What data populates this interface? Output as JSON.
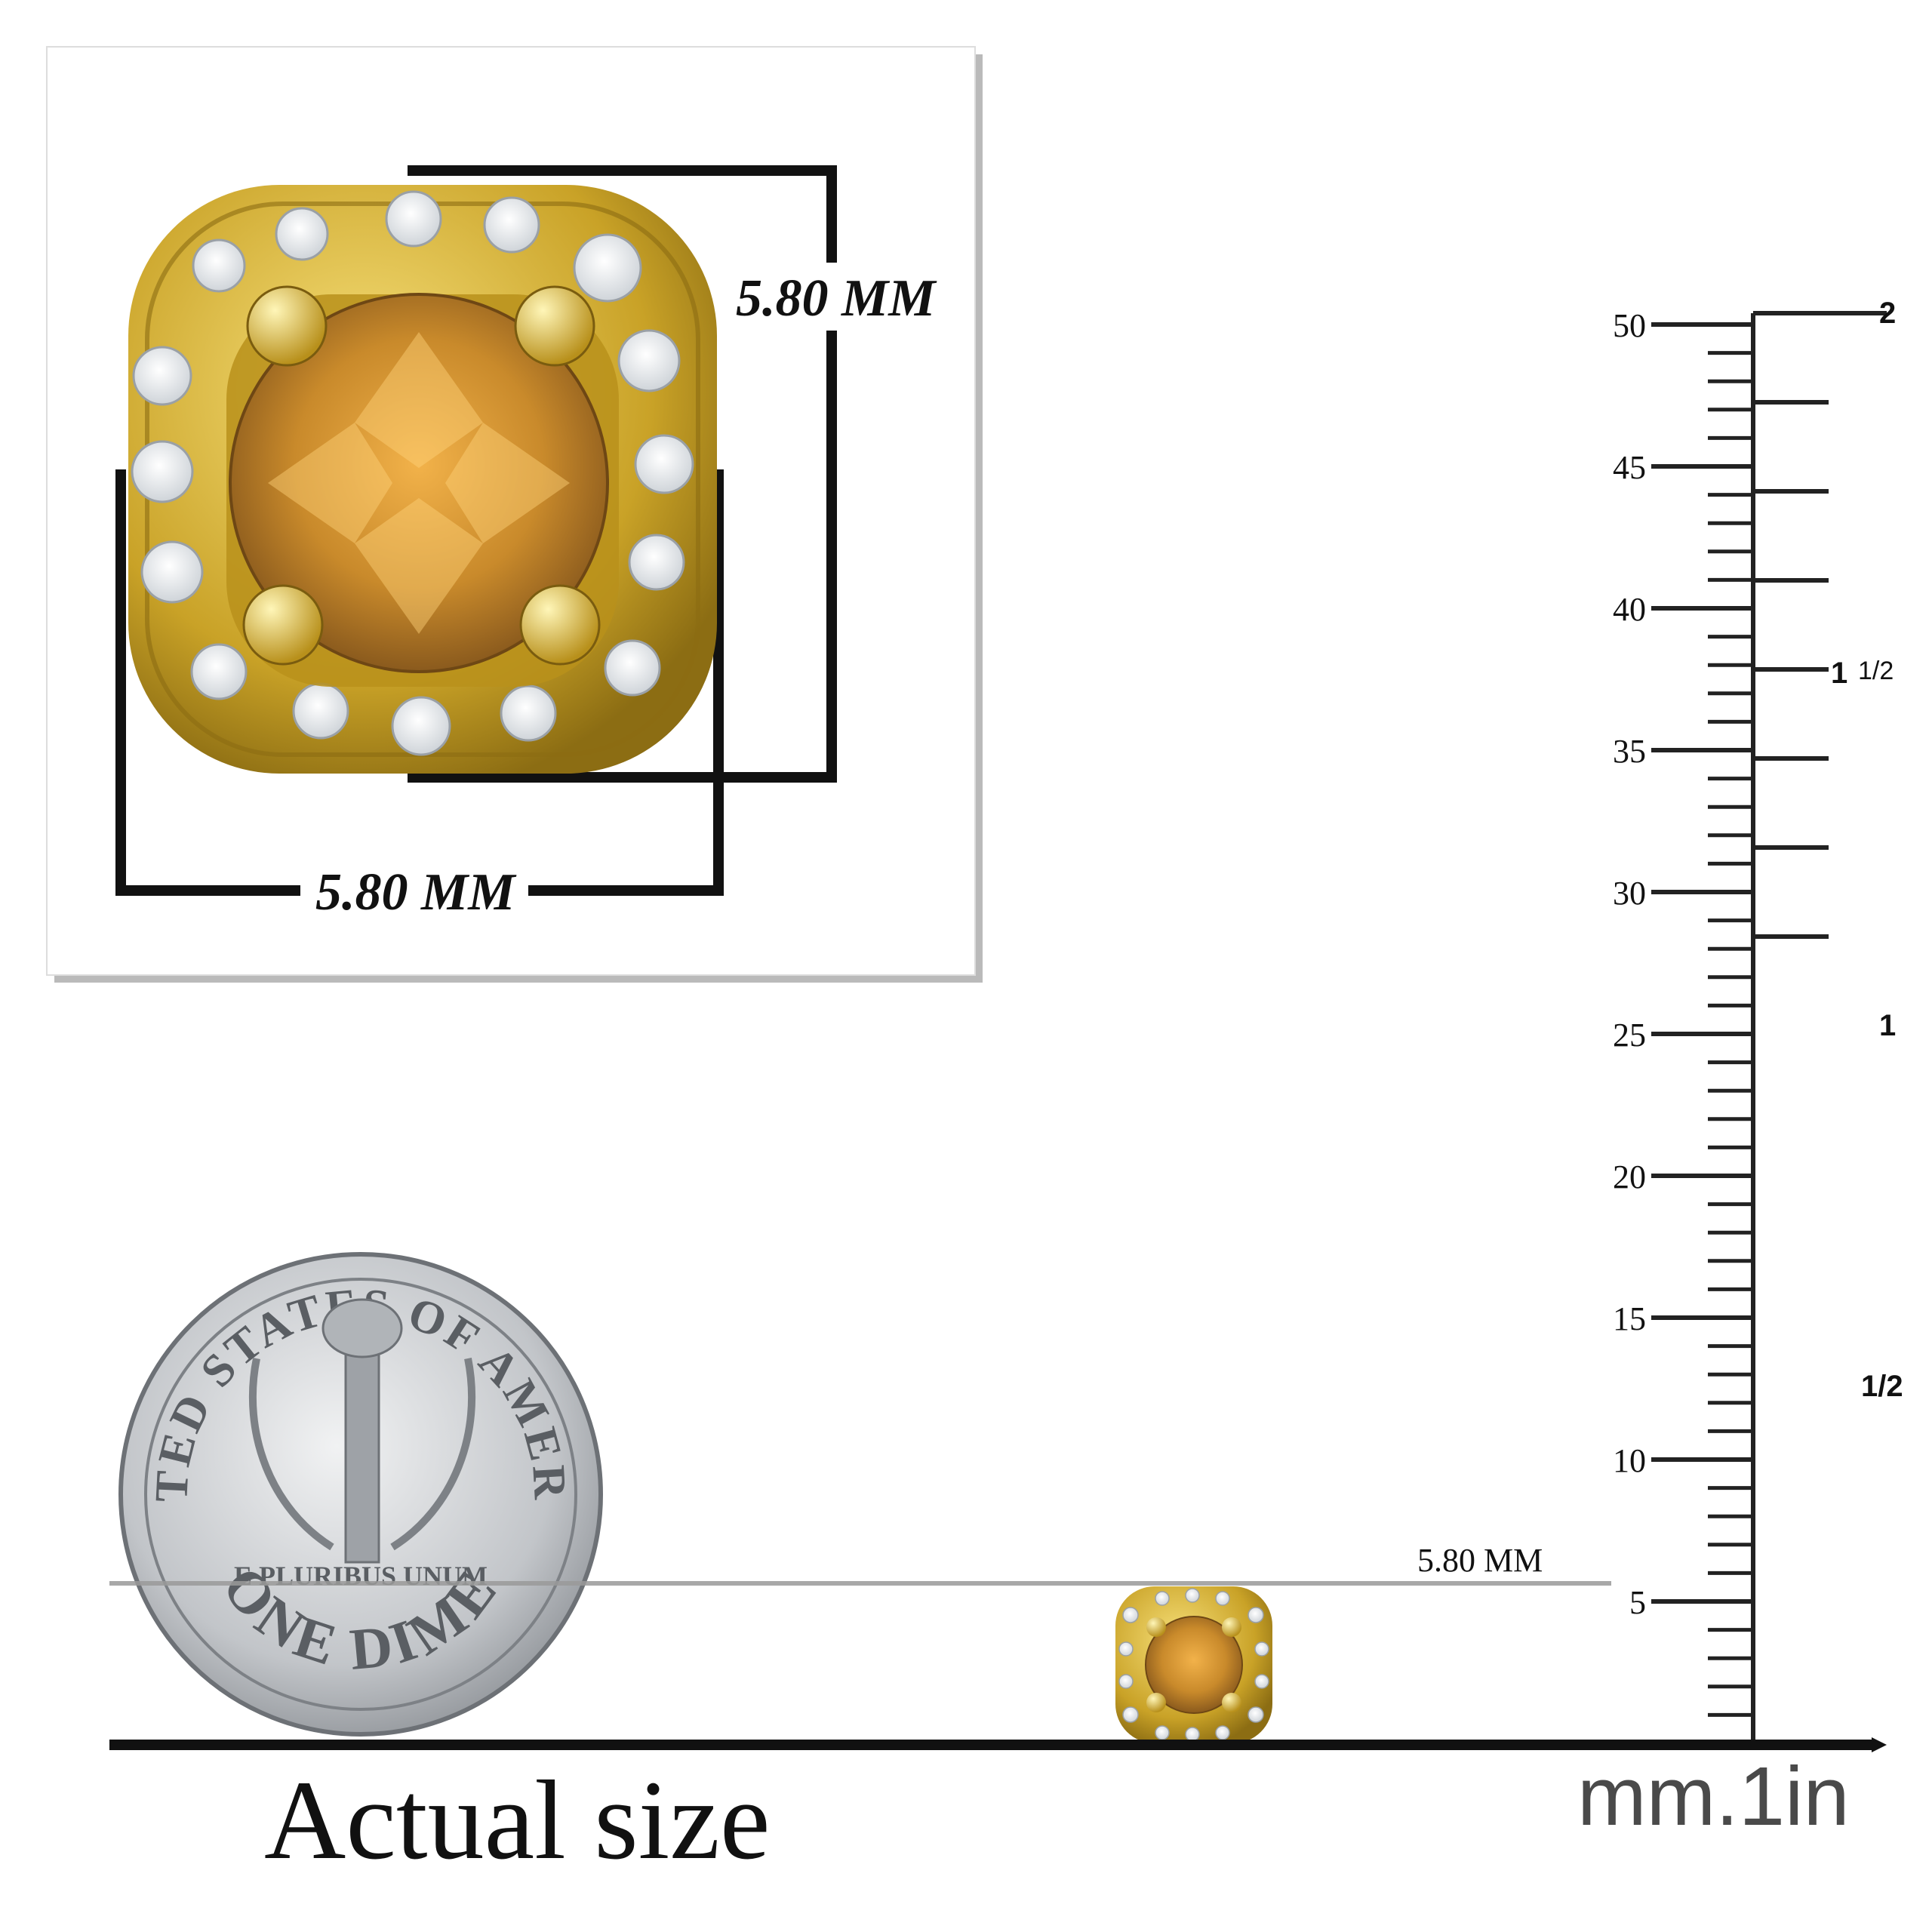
{
  "detail_panel": {
    "height_label": "5.80 MM",
    "width_label": "5.80 MM"
  },
  "size_line_label": "5.80 MM",
  "caption": "Actual size",
  "ruler": {
    "unit_label": "mm.1in",
    "mm_labels": [
      "50",
      "45",
      "40",
      "35",
      "30",
      "25",
      "20",
      "15",
      "10",
      "5"
    ],
    "inch_labels": {
      "two": "2",
      "one_half_whole": "1",
      "one_half_frac": "1/2",
      "one": "1",
      "half": "1/2"
    }
  },
  "coin": {
    "top_legend": "UNITED STATES OF AMERICA",
    "motto": "E PLURIBUS UNUM",
    "denomination": "ONE DIME"
  },
  "colors": {
    "gold": "#c9a227",
    "center_stone": "#c98a2b",
    "diamond": "#f2f4f6",
    "ink": "#111111",
    "coin_silver": "#b9bcc0"
  },
  "icons": [
    "earring-detail",
    "dime-coin",
    "earring-actual-size",
    "ruler"
  ]
}
